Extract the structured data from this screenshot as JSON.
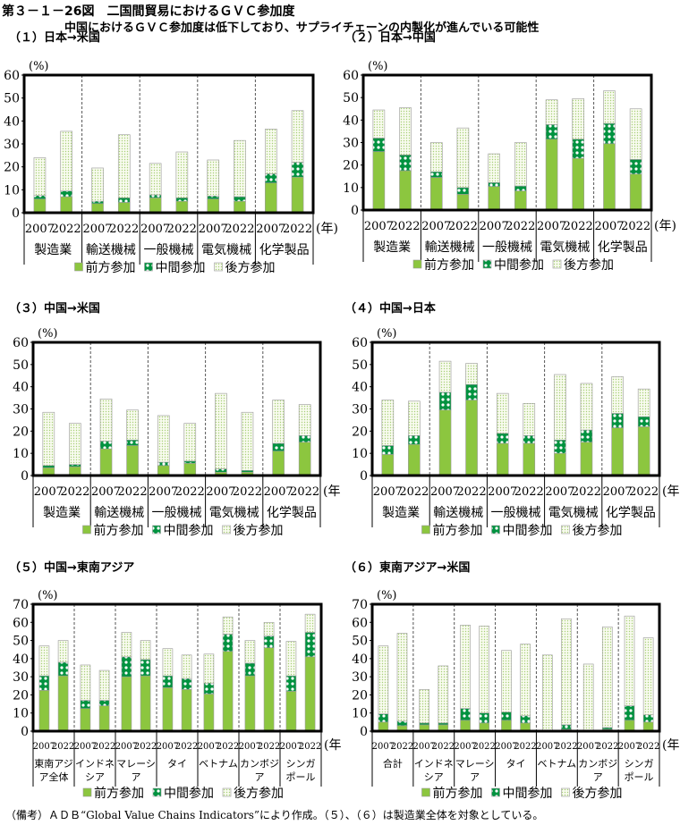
{
  "figure": {
    "title": "第３－１－26図　二国間貿易におけるＧＶＣ参加度",
    "subtitle": "中国におけるＧＶＣ参加度は低下しており、サプライチェーンの内製化が進んでいる可能性",
    "note": "（備考）ＡＤＢ“Global Value Chains Indicators”により作成。（５）、（６）は製造業全体を対象としている。"
  },
  "colors": {
    "forward": "#8cc63f",
    "middle": "#00923f",
    "backward": "#eef5dc",
    "border": "#999999"
  },
  "legend": [
    "前方参加",
    "中間参加",
    "後方参加"
  ],
  "chart_data": [
    {
      "type": "bar",
      "stacked": true,
      "title": "（１）日本→米国",
      "ylabel": "(%)",
      "xlabel": "(年)",
      "ylim": [
        0,
        60
      ],
      "yticks": [
        0,
        10,
        20,
        30,
        40,
        50,
        60
      ],
      "groups": [
        "製造業",
        "輸送機械",
        "一般機械",
        "電気機械",
        "化学製品"
      ],
      "years": [
        "2007",
        "2022"
      ],
      "series": [
        {
          "name": "前方参加",
          "values": [
            [
              6,
              7
            ],
            [
              4,
              4.5
            ],
            [
              6.5,
              5
            ],
            [
              6,
              5
            ],
            [
              13,
              15.5
            ]
          ]
        },
        {
          "name": "中間参加",
          "values": [
            [
              1.5,
              2.5
            ],
            [
              1,
              2
            ],
            [
              1.3,
              1.5
            ],
            [
              1.3,
              2
            ],
            [
              4,
              6.5
            ]
          ]
        },
        {
          "name": "後方参加",
          "values": [
            [
              16.5,
              26
            ],
            [
              14.5,
              27.5
            ],
            [
              13.7,
              20
            ],
            [
              15.7,
              24.5
            ],
            [
              19.5,
              22.5
            ]
          ]
        }
      ],
      "legend_position": "bottom"
    },
    {
      "type": "bar",
      "stacked": true,
      "title": "（２）日本→中国",
      "ylabel": "(%)",
      "xlabel": "(年)",
      "ylim": [
        0,
        60
      ],
      "yticks": [
        0,
        10,
        20,
        30,
        40,
        50,
        60
      ],
      "groups": [
        "製造業",
        "輸送機械",
        "一般機械",
        "電気機械",
        "化学製品"
      ],
      "years": [
        "2007",
        "2022"
      ],
      "series": [
        {
          "name": "前方参加",
          "values": [
            [
              26,
              17.5
            ],
            [
              14.5,
              7
            ],
            [
              10.5,
              8.5
            ],
            [
              31.5,
              23
            ],
            [
              29.5,
              16
            ]
          ]
        },
        {
          "name": "中間参加",
          "values": [
            [
              6,
              7
            ],
            [
              2.5,
              3
            ],
            [
              1.7,
              2.2
            ],
            [
              6.5,
              8.5
            ],
            [
              9,
              6.5
            ]
          ]
        },
        {
          "name": "後方参加",
          "values": [
            [
              12.5,
              21
            ],
            [
              13,
              26.5
            ],
            [
              12.8,
              19.3
            ],
            [
              11,
              18
            ],
            [
              14.5,
              22.5
            ]
          ]
        }
      ],
      "legend_position": "bottom"
    },
    {
      "type": "bar",
      "stacked": true,
      "title": "（３）中国→米国",
      "ylabel": "(%)",
      "xlabel": "(年",
      "ylim": [
        0,
        60
      ],
      "yticks": [
        0,
        10,
        20,
        30,
        40,
        50,
        60
      ],
      "groups": [
        "製造業",
        "輸送機械",
        "一般機械",
        "電気機械",
        "化学製品"
      ],
      "years": [
        "2007",
        "2022"
      ],
      "series": [
        {
          "name": "前方参加",
          "values": [
            [
              3.5,
              4
            ],
            [
              12,
              13.5
            ],
            [
              4.5,
              5.5
            ],
            [
              1.5,
              1.5
            ],
            [
              11,
              15
            ]
          ]
        },
        {
          "name": "中間参加",
          "values": [
            [
              1,
              1
            ],
            [
              3.5,
              2.5
            ],
            [
              1.5,
              1
            ],
            [
              1.5,
              0.8
            ],
            [
              3.5,
              3
            ]
          ]
        },
        {
          "name": "後方参加",
          "values": [
            [
              24,
              18.5
            ],
            [
              19,
              13.5
            ],
            [
              21,
              17
            ],
            [
              34,
              26.2
            ],
            [
              19.5,
              14
            ]
          ]
        }
      ],
      "legend_position": "bottom"
    },
    {
      "type": "bar",
      "stacked": true,
      "title": "（４）中国→日本",
      "ylabel": "(%)",
      "xlabel": "(年",
      "ylim": [
        0,
        60
      ],
      "yticks": [
        0,
        10,
        20,
        30,
        40,
        50,
        60
      ],
      "groups": [
        "製造業",
        "輸送機械",
        "一般機械",
        "電気機械",
        "化学製品"
      ],
      "years": [
        "2007",
        "2022"
      ],
      "series": [
        {
          "name": "前方参加",
          "values": [
            [
              9.5,
              14
            ],
            [
              29.5,
              34
            ],
            [
              14.5,
              14.5
            ],
            [
              10,
              15
            ],
            [
              21.5,
              22
            ]
          ]
        },
        {
          "name": "中間参加",
          "values": [
            [
              4,
              4
            ],
            [
              8,
              7
            ],
            [
              4.5,
              3.5
            ],
            [
              6,
              5.5
            ],
            [
              6.5,
              4.5
            ]
          ]
        },
        {
          "name": "後方参加",
          "values": [
            [
              20.5,
              15.5
            ],
            [
              14,
              9.5
            ],
            [
              18,
              14.5
            ],
            [
              29.5,
              21
            ],
            [
              16.5,
              12.5
            ]
          ]
        }
      ],
      "legend_position": "bottom"
    },
    {
      "type": "bar",
      "stacked": true,
      "title": "（５）中国→東南アジア",
      "ylabel": "(%)",
      "xlabel": "(年",
      "ylim": [
        0,
        70
      ],
      "yticks": [
        0,
        10,
        20,
        30,
        40,
        50,
        60,
        70
      ],
      "groups": [
        "東南アジ|ア全体",
        "インドネ|シア",
        "マレーシ|ア",
        "タイ",
        "ベトナム",
        "カンボジ|ア",
        "シンガ|ポール"
      ],
      "years": [
        "2007",
        "2022"
      ],
      "series": [
        {
          "name": "前方参加",
          "values": [
            [
              22.5,
              30.5
            ],
            [
              12.5,
              14
            ],
            [
              30,
              30.5
            ],
            [
              24,
              23
            ],
            [
              20.5,
              44
            ],
            [
              30.5,
              46
            ],
            [
              22,
              41
            ]
          ]
        },
        {
          "name": "中間参加",
          "values": [
            [
              8,
              7.5
            ],
            [
              4.5,
              3
            ],
            [
              11,
              9
            ],
            [
              6.5,
              6
            ],
            [
              6,
              9.5
            ],
            [
              7,
              6.5
            ],
            [
              8.5,
              13.5
            ]
          ]
        },
        {
          "name": "後方参加",
          "values": [
            [
              16.5,
              12
            ],
            [
              19.5,
              16.5
            ],
            [
              13.5,
              10.5
            ],
            [
              15,
              13
            ],
            [
              16,
              9.5
            ],
            [
              12.5,
              7.5
            ],
            [
              19,
              10
            ]
          ]
        }
      ],
      "legend_position": "bottom"
    },
    {
      "type": "bar",
      "stacked": true,
      "title": "（６）東南アジア→米国",
      "ylabel": "(%)",
      "xlabel": "(年",
      "ylim": [
        0,
        70
      ],
      "yticks": [
        0,
        10,
        20,
        30,
        40,
        50,
        60,
        70
      ],
      "groups": [
        "合計",
        "インドネ|シア",
        "マレーシ|ア",
        "タイ",
        "ベトナム",
        "カンボジ|ア",
        "シンガ|ポール"
      ],
      "years": [
        "2007",
        "2022"
      ],
      "series": [
        {
          "name": "前方参加",
          "values": [
            [
              5,
              3
            ],
            [
              3.5,
              3.5
            ],
            [
              6,
              4.5
            ],
            [
              6,
              4.5
            ],
            [
              0.3,
              1
            ],
            [
              0.2,
              1
            ],
            [
              6,
              5
            ]
          ]
        },
        {
          "name": "中間参加",
          "values": [
            [
              4.5,
              2.5
            ],
            [
              1,
              1
            ],
            [
              6.5,
              5.5
            ],
            [
              4.5,
              4
            ],
            [
              0.2,
              2.5
            ],
            [
              0.1,
              1
            ],
            [
              8,
              4
            ]
          ]
        },
        {
          "name": "後方参加",
          "values": [
            [
              37.5,
              48.5
            ],
            [
              18.5,
              31.5
            ],
            [
              46,
              48
            ],
            [
              34,
              39.5
            ],
            [
              41.5,
              58.5
            ],
            [
              36.7,
              55.5
            ],
            [
              49.5,
              42.5
            ]
          ]
        }
      ],
      "legend_position": "bottom"
    }
  ]
}
